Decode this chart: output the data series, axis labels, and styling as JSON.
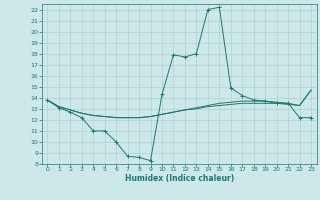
{
  "title": "",
  "xlabel": "Humidex (Indice chaleur)",
  "bg_color": "#cce8e8",
  "grid_color": "#aacccc",
  "line_color": "#1a7a6e",
  "xlim": [
    -0.5,
    23.5
  ],
  "ylim": [
    8,
    22.5
  ],
  "yticks": [
    8,
    9,
    10,
    11,
    12,
    13,
    14,
    15,
    16,
    17,
    18,
    19,
    20,
    21,
    22
  ],
  "xticks": [
    0,
    1,
    2,
    3,
    4,
    5,
    6,
    7,
    8,
    9,
    10,
    11,
    12,
    13,
    14,
    15,
    16,
    17,
    18,
    19,
    20,
    21,
    22,
    23
  ],
  "series_main": [
    [
      0,
      13.8
    ],
    [
      1,
      13.1
    ],
    [
      2,
      12.7
    ],
    [
      3,
      12.2
    ],
    [
      4,
      11.0
    ],
    [
      5,
      11.0
    ],
    [
      6,
      10.0
    ],
    [
      7,
      8.7
    ],
    [
      8,
      8.6
    ],
    [
      9,
      8.3
    ],
    [
      10,
      14.3
    ],
    [
      11,
      17.9
    ],
    [
      12,
      17.7
    ],
    [
      13,
      18.0
    ],
    [
      14,
      22.0
    ],
    [
      15,
      22.2
    ],
    [
      16,
      14.9
    ],
    [
      17,
      14.2
    ],
    [
      18,
      13.8
    ],
    [
      19,
      13.7
    ],
    [
      20,
      13.5
    ],
    [
      21,
      13.5
    ],
    [
      22,
      12.2
    ],
    [
      23,
      12.2
    ]
  ],
  "series_avg1": [
    [
      0,
      13.8
    ],
    [
      1,
      13.2
    ],
    [
      2,
      12.9
    ],
    [
      3,
      12.6
    ],
    [
      4,
      12.4
    ],
    [
      5,
      12.3
    ],
    [
      6,
      12.2
    ],
    [
      7,
      12.2
    ],
    [
      8,
      12.2
    ],
    [
      9,
      12.3
    ],
    [
      10,
      12.5
    ],
    [
      11,
      12.7
    ],
    [
      12,
      12.9
    ],
    [
      13,
      13.0
    ],
    [
      14,
      13.2
    ],
    [
      15,
      13.3
    ],
    [
      16,
      13.4
    ],
    [
      17,
      13.5
    ],
    [
      18,
      13.5
    ],
    [
      19,
      13.5
    ],
    [
      20,
      13.5
    ],
    [
      21,
      13.4
    ],
    [
      22,
      13.3
    ],
    [
      23,
      14.7
    ]
  ],
  "series_avg2": [
    [
      0,
      13.8
    ],
    [
      1,
      13.2
    ],
    [
      2,
      12.9
    ],
    [
      3,
      12.6
    ],
    [
      4,
      12.4
    ],
    [
      5,
      12.3
    ],
    [
      6,
      12.2
    ],
    [
      7,
      12.2
    ],
    [
      8,
      12.2
    ],
    [
      9,
      12.3
    ],
    [
      10,
      12.5
    ],
    [
      11,
      12.7
    ],
    [
      12,
      12.9
    ],
    [
      13,
      13.1
    ],
    [
      14,
      13.3
    ],
    [
      15,
      13.5
    ],
    [
      16,
      13.6
    ],
    [
      17,
      13.7
    ],
    [
      18,
      13.7
    ],
    [
      19,
      13.7
    ],
    [
      20,
      13.6
    ],
    [
      21,
      13.5
    ],
    [
      22,
      13.3
    ],
    [
      23,
      14.7
    ]
  ]
}
